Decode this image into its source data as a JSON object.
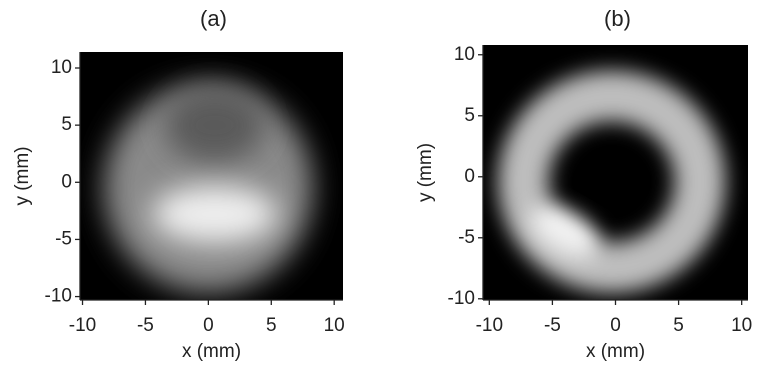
{
  "chart_data": [
    {
      "type": "image",
      "title": "(a)",
      "xlabel": "x (mm)",
      "ylabel": "y (mm)",
      "xlim": [
        -10.2,
        10.7
      ],
      "ylim": [
        -10.3,
        11.4
      ],
      "xticks": [
        -10,
        -5,
        0,
        5,
        10
      ],
      "yticks": [
        -10,
        -5,
        0,
        5,
        10
      ]
    },
    {
      "type": "image",
      "title": "(b)",
      "xlabel": "x (mm)",
      "ylabel": "y (mm)",
      "xlim": [
        -10.5,
        10.5
      ],
      "ylim": [
        -10.1,
        10.8
      ],
      "xticks": [
        -10,
        -5,
        0,
        5,
        10
      ],
      "yticks": [
        -10,
        -5,
        0,
        5,
        10
      ]
    }
  ]
}
